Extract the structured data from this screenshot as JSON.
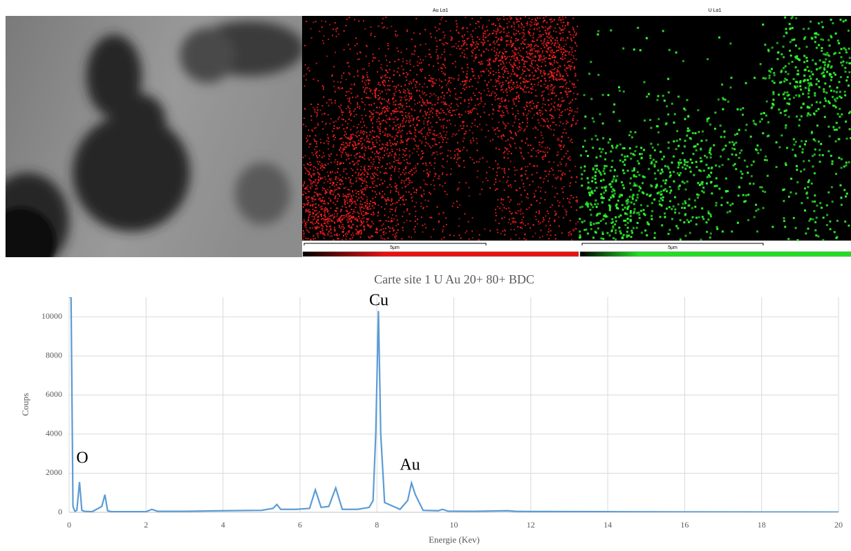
{
  "maps": [
    {
      "label": "Au Lα1",
      "scale": "5µm"
    },
    {
      "label": "U Lα1",
      "scale": "5µm"
    }
  ],
  "chart_data": {
    "type": "line",
    "title": "Carte site 1 U Au 20+ 80+ BDC",
    "x_label": "Energie (Kev)",
    "y_label": "Coups",
    "annotations": [
      "O",
      "Cu",
      "Au"
    ],
    "color": "#5b9bd5",
    "grid": true,
    "xlim": [
      0,
      20
    ],
    "ylim": [
      0,
      11000
    ],
    "xticks": [
      0,
      2,
      4,
      6,
      8,
      10,
      12,
      14,
      16,
      18,
      20
    ],
    "yticks": [
      0,
      2000,
      4000,
      6000,
      8000,
      10000
    ],
    "x": [
      0,
      0.05,
      0.1,
      0.15,
      0.2,
      0.27,
      0.33,
      0.4,
      0.6,
      0.85,
      0.93,
      1.0,
      1.1,
      1.5,
      2.0,
      2.15,
      2.3,
      3,
      4,
      5,
      5.3,
      5.4,
      5.5,
      5.9,
      6.25,
      6.4,
      6.55,
      6.75,
      6.93,
      7.1,
      7.5,
      7.65,
      7.8,
      7.9,
      7.97,
      8.04,
      8.1,
      8.2,
      8.6,
      8.8,
      8.9,
      9.0,
      9.2,
      9.6,
      9.7,
      9.85,
      10.5,
      11.4,
      11.6,
      12,
      14,
      16,
      18,
      20
    ],
    "values": [
      11000,
      11000,
      300,
      50,
      100,
      1550,
      100,
      50,
      30,
      300,
      900,
      80,
      30,
      30,
      30,
      150,
      50,
      50,
      80,
      100,
      200,
      400,
      150,
      150,
      200,
      1150,
      250,
      300,
      1250,
      150,
      150,
      200,
      250,
      600,
      4000,
      10300,
      4000,
      500,
      150,
      600,
      1500,
      900,
      100,
      80,
      150,
      60,
      50,
      80,
      50,
      40,
      30,
      20,
      15,
      10
    ]
  }
}
